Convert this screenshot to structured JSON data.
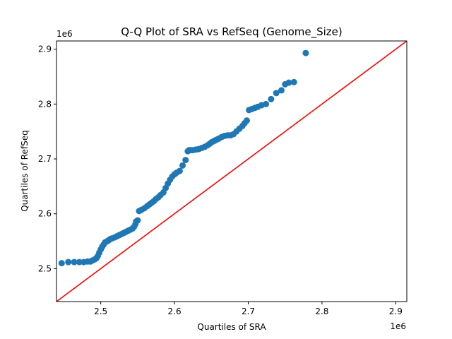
{
  "chart_data": {
    "type": "scatter",
    "title": "Q-Q Plot of SRA vs RefSeq (Genome_Size)",
    "xlabel": "Quartiles of SRA",
    "ylabel": "Quartiles of RefSeq",
    "x_offset_label": "1e6",
    "y_offset_label": "1e6",
    "xlim": [
      2.44,
      2.915
    ],
    "ylim": [
      2.44,
      2.915
    ],
    "xticks": [
      2.5,
      2.6,
      2.7,
      2.8,
      2.9
    ],
    "xtick_labels": [
      "2.5",
      "2.6",
      "2.7",
      "2.8",
      "2.9"
    ],
    "yticks": [
      2.5,
      2.6,
      2.7,
      2.8,
      2.9
    ],
    "ytick_labels": [
      "2.5",
      "2.6",
      "2.7",
      "2.8",
      "2.9"
    ],
    "grid": false,
    "reference_line": {
      "slope": 1,
      "intercept": 0,
      "color": "#ff0000"
    },
    "marker_color": "#1f77b4",
    "x": [
      2.447,
      2.456,
      2.464,
      2.471,
      2.477,
      2.482,
      2.486,
      2.489,
      2.492,
      2.494,
      2.496,
      2.498,
      2.5,
      2.502,
      2.504,
      2.506,
      2.509,
      2.511,
      2.513,
      2.515,
      2.519,
      2.522,
      2.525,
      2.528,
      2.531,
      2.534,
      2.537,
      2.54,
      2.543,
      2.545,
      2.547,
      2.548,
      2.55,
      2.552,
      2.555,
      2.559,
      2.563,
      2.566,
      2.569,
      2.572,
      2.575,
      2.578,
      2.581,
      2.585,
      2.588,
      2.591,
      2.594,
      2.597,
      2.6,
      2.603,
      2.607,
      2.611,
      2.615,
      2.618,
      2.62,
      2.622,
      2.625,
      2.629,
      2.633,
      2.637,
      2.641,
      2.645,
      2.648,
      2.651,
      2.654,
      2.657,
      2.66,
      2.664,
      2.668,
      2.672,
      2.676,
      2.68,
      2.684,
      2.688,
      2.692,
      2.695,
      2.698,
      2.701,
      2.705,
      2.709,
      2.713,
      2.718,
      2.724,
      2.731,
      2.738,
      2.745,
      2.75,
      2.755,
      2.762,
      2.778
    ],
    "y": [
      2.51,
      2.512,
      2.512,
      2.512,
      2.512,
      2.513,
      2.513,
      2.515,
      2.517,
      2.519,
      2.523,
      2.529,
      2.535,
      2.54,
      2.544,
      2.548,
      2.55,
      2.552,
      2.554,
      2.555,
      2.557,
      2.559,
      2.561,
      2.563,
      2.565,
      2.567,
      2.569,
      2.571,
      2.573,
      2.576,
      2.581,
      2.586,
      2.588,
      2.605,
      2.607,
      2.61,
      2.614,
      2.617,
      2.62,
      2.623,
      2.627,
      2.63,
      2.634,
      2.639,
      2.647,
      2.655,
      2.662,
      2.668,
      2.672,
      2.675,
      2.678,
      2.688,
      2.698,
      2.714,
      2.716,
      2.716,
      2.716,
      2.717,
      2.718,
      2.72,
      2.722,
      2.725,
      2.728,
      2.731,
      2.733,
      2.735,
      2.737,
      2.74,
      2.742,
      2.743,
      2.743,
      2.745,
      2.75,
      2.755,
      2.76,
      2.765,
      2.77,
      2.789,
      2.791,
      2.793,
      2.795,
      2.798,
      2.8,
      2.809,
      2.82,
      2.825,
      2.836,
      2.839,
      2.84,
      2.893
    ]
  }
}
